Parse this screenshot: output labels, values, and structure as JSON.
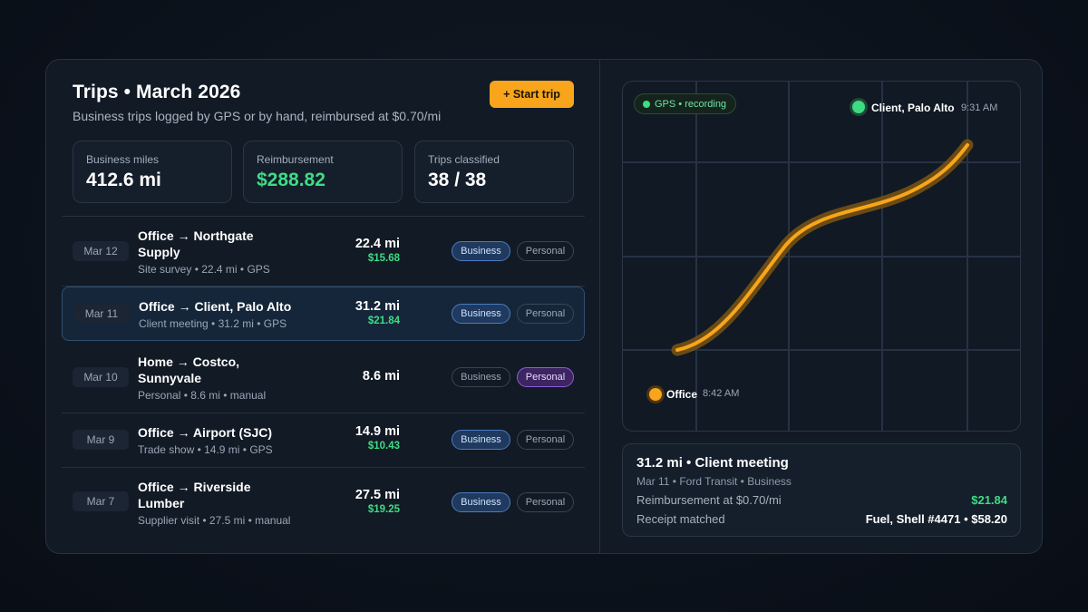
{
  "header": {
    "title": "Trips • March 2026",
    "subtitle": "Business trips logged by GPS or by hand, reimbursed at $0.70/mi",
    "start_button": "+ Start trip"
  },
  "stats": [
    {
      "label": "Business miles",
      "value": "412.6 mi"
    },
    {
      "label": "Reimbursement",
      "value": "$288.82"
    },
    {
      "label": "Trips classified",
      "value": "38 / 38"
    }
  ],
  "trips": [
    {
      "date": "Mar 12",
      "name": "Office → Northgate Supply",
      "meta": "Site survey • 22.4 mi • GPS",
      "miles": "22.4 mi",
      "amount": "$15.68",
      "business_label": "Business",
      "personal_label": "Personal",
      "classification": "business",
      "selected": false
    },
    {
      "date": "Mar 11",
      "name": "Office → Client, Palo Alto",
      "meta": "Client meeting • 31.2 mi • GPS",
      "miles": "31.2 mi",
      "amount": "$21.84",
      "business_label": "Business",
      "personal_label": "Personal",
      "classification": "business",
      "selected": true
    },
    {
      "date": "Mar 10",
      "name": "Home → Costco, Sunnyvale",
      "meta": "Personal • 8.6 mi • manual",
      "miles": "8.6 mi",
      "amount": "",
      "business_label": "Business",
      "personal_label": "Personal",
      "classification": "personal",
      "selected": false
    },
    {
      "date": "Mar 9",
      "name": "Office → Airport (SJC)",
      "meta": "Trade show • 14.9 mi • GPS",
      "miles": "14.9 mi",
      "amount": "$10.43",
      "business_label": "Business",
      "personal_label": "Personal",
      "classification": "business",
      "selected": false
    },
    {
      "date": "Mar 7",
      "name": "Office → Riverside Lumber",
      "meta": "Supplier visit • 27.5 mi • manual",
      "miles": "27.5 mi",
      "amount": "$19.25",
      "business_label": "Business",
      "personal_label": "Personal",
      "classification": "business",
      "selected": false
    }
  ],
  "map": {
    "gps_status": "GPS • recording",
    "start": {
      "label": "Office",
      "time": "8:42 AM"
    },
    "end": {
      "label": "Client, Palo Alto",
      "time": "9:31 AM"
    }
  },
  "detail": {
    "title": "31.2 mi • Client meeting",
    "meta": "Mar 11 • Ford Transit • Business",
    "reimb_label": "Reimbursement at $0.70/mi",
    "reimb_value": "$21.84",
    "receipt_label": "Receipt matched",
    "receipt_value": "Fuel, Shell #4471 • $58.20"
  },
  "colors": {
    "accent": "#f8a51c",
    "money_green": "#3ddc84",
    "business_blue": "#4a7bbf",
    "personal_purple": "#8a5ed6"
  }
}
